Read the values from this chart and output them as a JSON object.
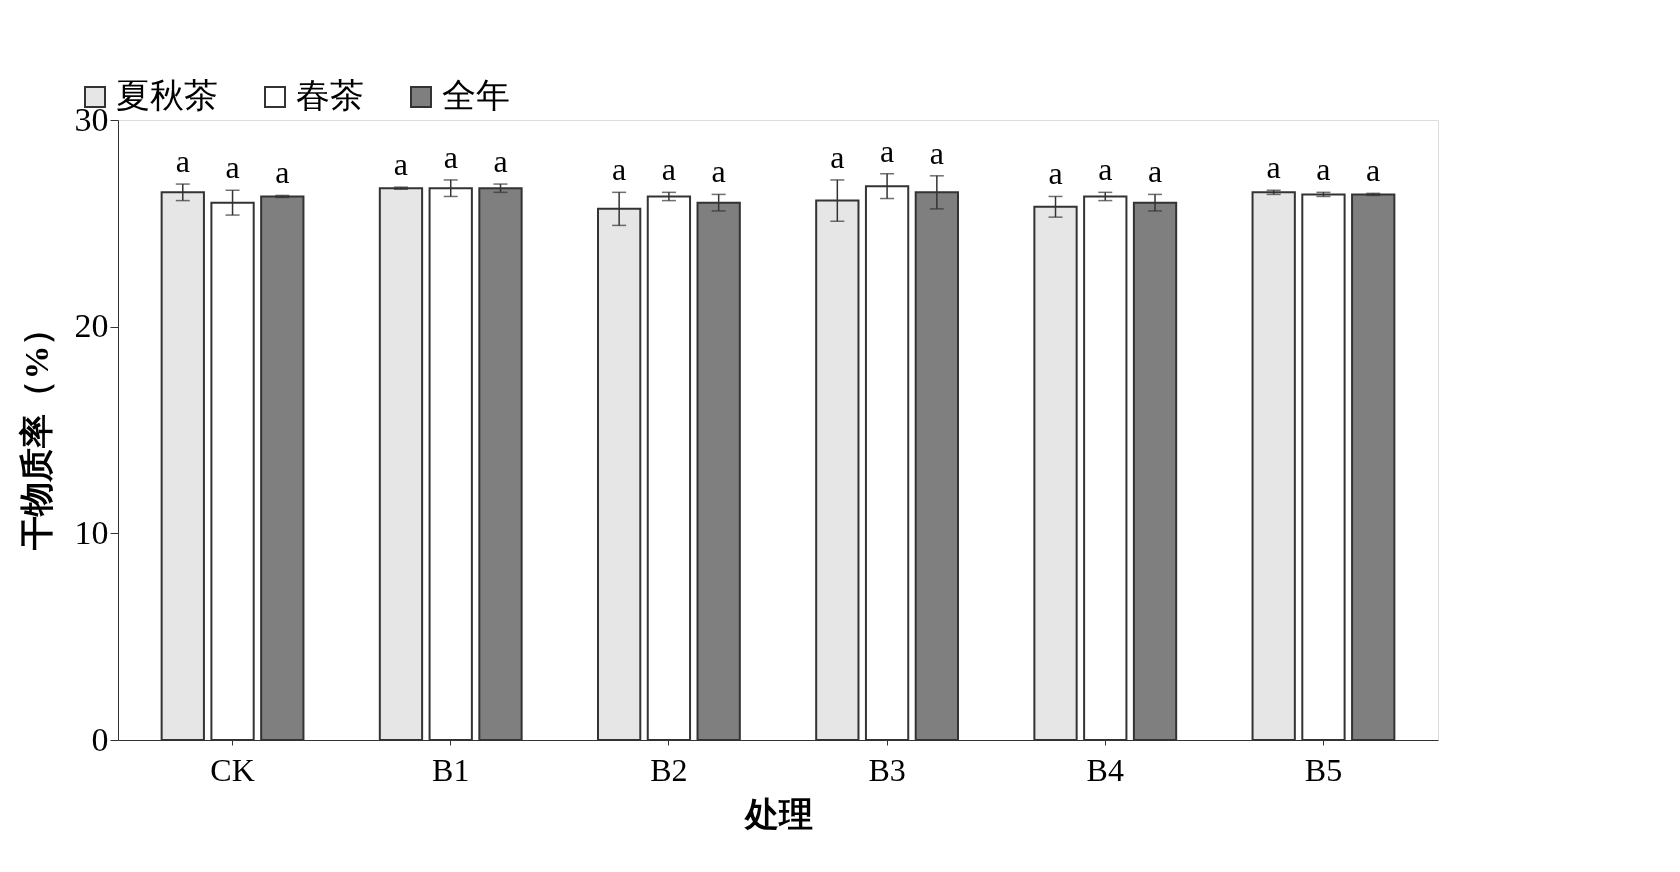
{
  "chart_data": {
    "type": "bar",
    "xlabel": "处理",
    "ylabel": "干物质率（%）",
    "categories": [
      "CK",
      "B1",
      "B2",
      "B3",
      "B4",
      "B5"
    ],
    "ylim": [
      0,
      30
    ],
    "yticks": [
      0,
      10,
      20,
      30
    ],
    "grid": false,
    "legend": "top left",
    "series": [
      {
        "name": "夏秋茶",
        "color": "#e6e6e6",
        "values": [
          26.5,
          26.7,
          25.7,
          26.1,
          25.8,
          26.5
        ],
        "errors": [
          0.4,
          0.05,
          0.8,
          1.0,
          0.5,
          0.1
        ],
        "value_labels": [
          "a",
          "a",
          "a",
          "a",
          "a",
          "a"
        ]
      },
      {
        "name": "春茶",
        "color": "#ffffff",
        "values": [
          26.0,
          26.7,
          26.3,
          26.8,
          26.3,
          26.4
        ],
        "errors": [
          0.6,
          0.4,
          0.2,
          0.6,
          0.2,
          0.1
        ],
        "value_labels": [
          "a",
          "a",
          "a",
          "a",
          "a",
          "a"
        ]
      },
      {
        "name": "全年",
        "color": "#7f7f7f",
        "values": [
          26.3,
          26.7,
          26.0,
          26.5,
          26.0,
          26.4
        ],
        "errors": [
          0.05,
          0.2,
          0.4,
          0.8,
          0.4,
          0.05
        ],
        "value_labels": [
          "a",
          "a",
          "a",
          "a",
          "a",
          "a"
        ]
      }
    ]
  }
}
